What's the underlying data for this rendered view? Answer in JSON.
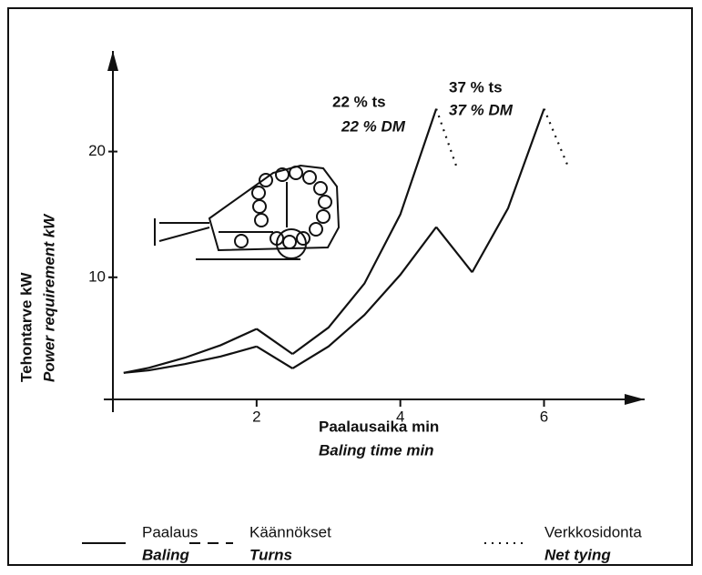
{
  "chart_data": {
    "type": "line",
    "x_label": [
      "Paalausaika min",
      "Baling time min"
    ],
    "y_label": [
      "Tehontarve kW",
      "Power requirement kW"
    ],
    "xlim": [
      0,
      7.4
    ],
    "ylim": [
      0,
      28
    ],
    "xticks": [
      2,
      4,
      6
    ],
    "yticks": [
      10,
      20
    ],
    "color": "#111111",
    "legend": [
      {
        "style": "solid",
        "name": "Paalaus",
        "name_en": "Baling"
      },
      {
        "style": "dashed",
        "name": "Käännökset",
        "name_en": "Turns"
      },
      {
        "style": "dotted",
        "name": "Verkkosidonta",
        "name_en": "Net tying"
      }
    ],
    "series": [
      {
        "label": "22 % ts",
        "label_en": "22 % DM",
        "pieces": [
          {
            "style": "solid",
            "x": [
              0.15,
              0.5,
              1,
              1.5,
              2
            ],
            "values": [
              2.4,
              2.8,
              3.6,
              4.6,
              5.9
            ]
          },
          {
            "style": "solid",
            "x": [
              2,
              2.5
            ],
            "values": [
              5.9,
              3.9
            ]
          },
          {
            "style": "solid",
            "x": [
              2.5,
              3,
              3.5,
              4,
              4.5
            ],
            "values": [
              3.9,
              6,
              9.5,
              15,
              23.4
            ]
          },
          {
            "style": "dotted",
            "x": [
              4.5,
              4.8
            ],
            "values": [
              23.4,
              18.5
            ]
          }
        ]
      },
      {
        "label": "37 % ts",
        "label_en": "37 % DM",
        "pieces": [
          {
            "style": "solid",
            "x": [
              0.15,
              0.5,
              1,
              1.5,
              2
            ],
            "values": [
              2.4,
              2.6,
              3.1,
              3.7,
              4.5
            ]
          },
          {
            "style": "solid",
            "x": [
              2,
              2.5
            ],
            "values": [
              4.5,
              2.75
            ]
          },
          {
            "style": "solid",
            "x": [
              2.5,
              3,
              3.5,
              4,
              4.5
            ],
            "values": [
              2.75,
              4.5,
              7,
              10.2,
              14
            ]
          },
          {
            "style": "solid",
            "x": [
              4.5,
              5
            ],
            "values": [
              14,
              10.4
            ]
          },
          {
            "style": "solid",
            "x": [
              5,
              5.5,
              6
            ],
            "values": [
              10.4,
              15.5,
              23.4
            ]
          },
          {
            "style": "dotted",
            "x": [
              6,
              6.35
            ],
            "values": [
              23.4,
              18.6
            ]
          }
        ]
      }
    ]
  }
}
